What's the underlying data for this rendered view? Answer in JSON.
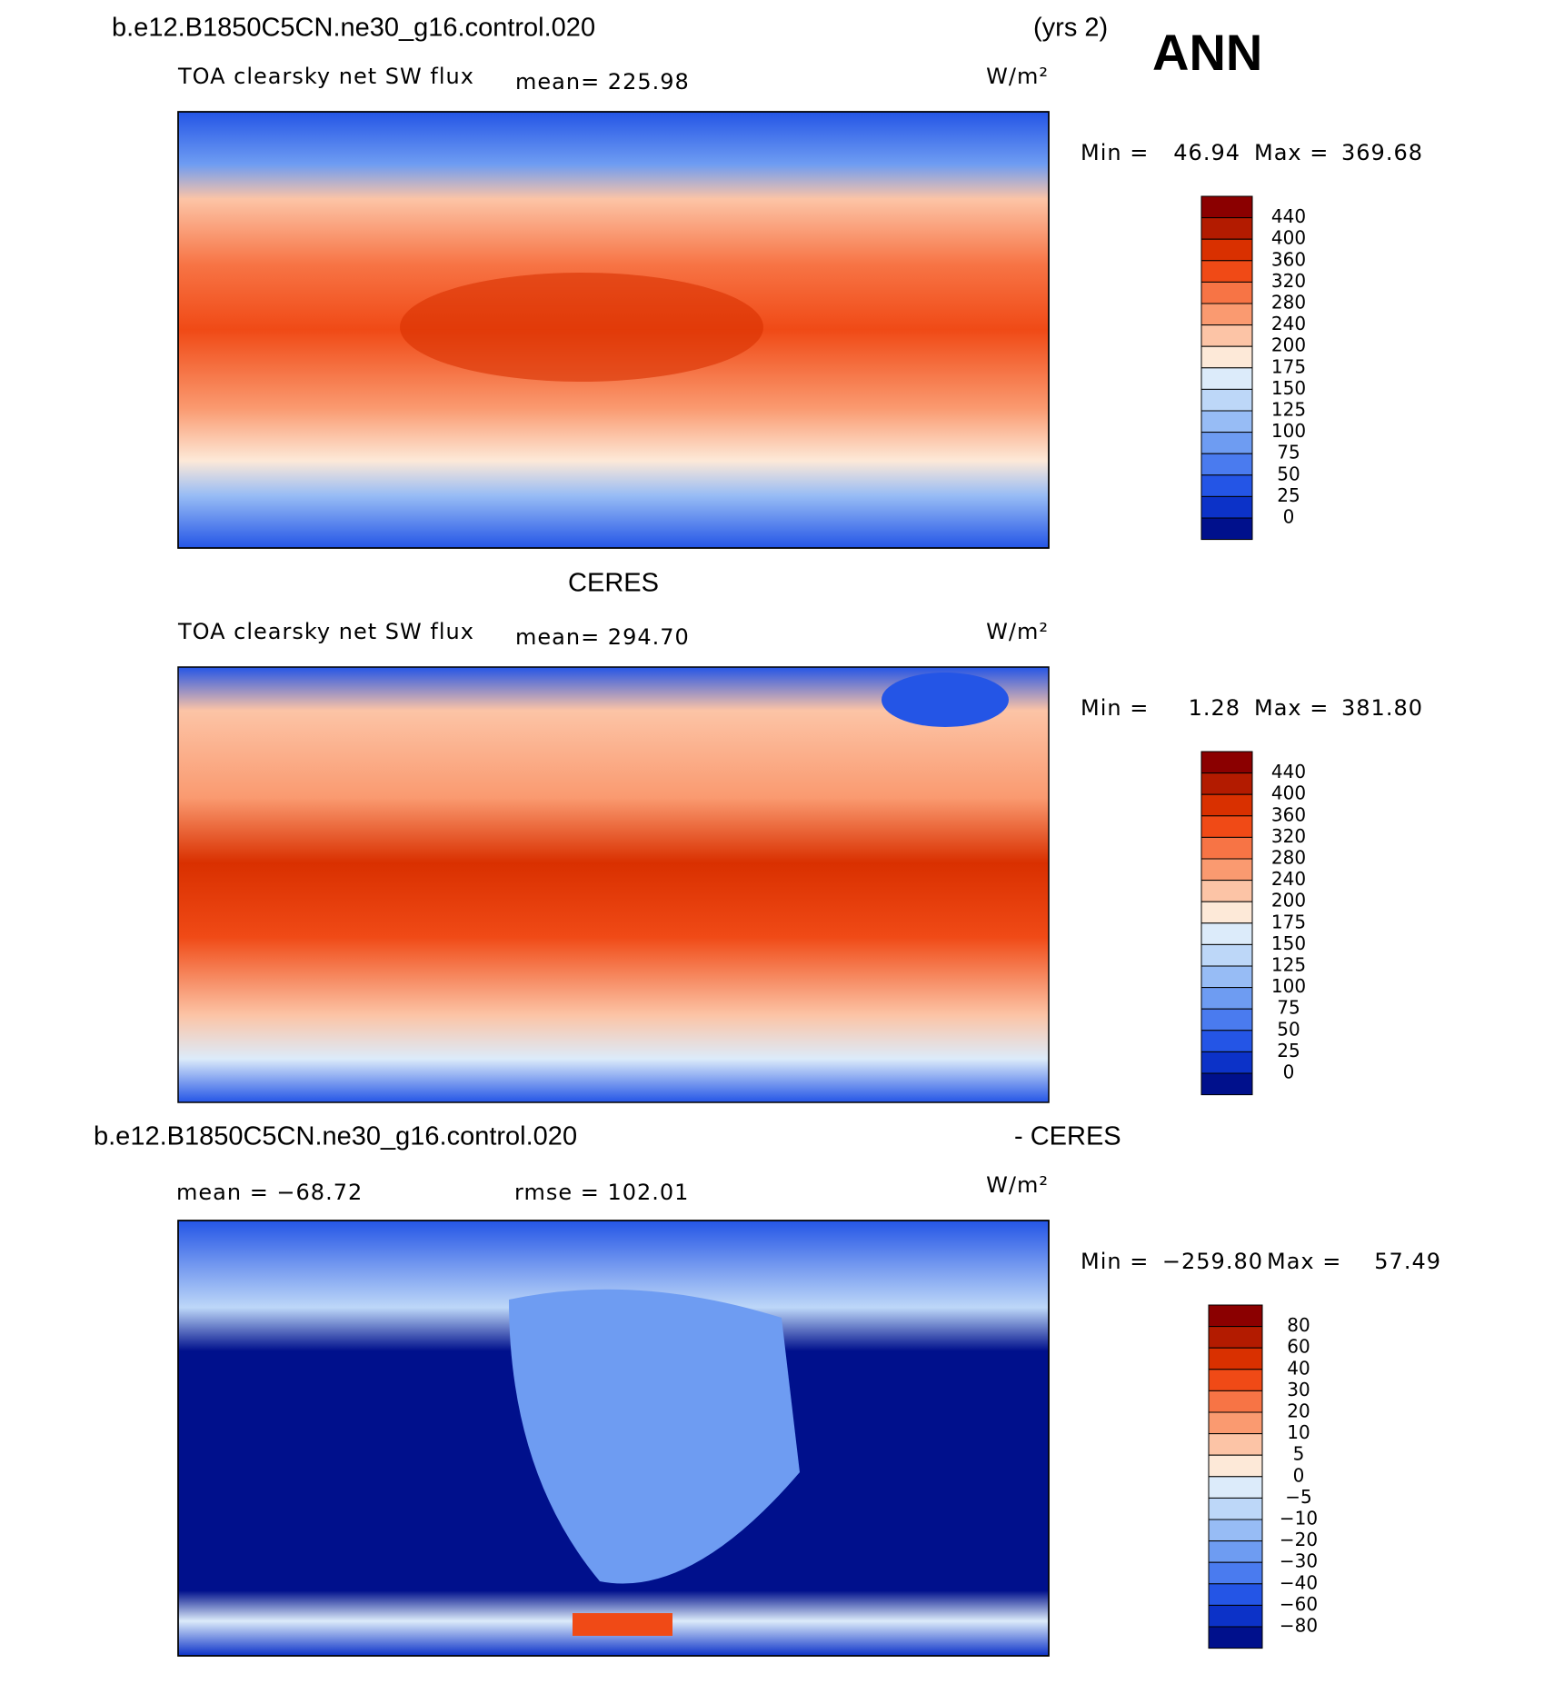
{
  "header": {
    "case": "b.e12.B1850C5CN.ne30_g16.control.020",
    "years": "(yrs 2)",
    "season": "ANN"
  },
  "panels": [
    {
      "heading": null,
      "variable": "TOA clearsky net SW flux",
      "mean": "mean= 225.98",
      "units": "W/m²",
      "min_label": "Min =",
      "min": "46.94",
      "max_label": "Max =",
      "max": "369.68",
      "colorbar": [
        "440",
        "400",
        "360",
        "320",
        "280",
        "240",
        "200",
        "175",
        "150",
        "125",
        "100",
        "75",
        "50",
        "25",
        "0"
      ]
    },
    {
      "heading": "CERES",
      "variable": "TOA clearsky net SW flux",
      "mean": "mean= 294.70",
      "units": "W/m²",
      "min_label": "Min =",
      "min": "1.28",
      "max_label": "Max =",
      "max": "381.80",
      "colorbar": [
        "440",
        "400",
        "360",
        "320",
        "280",
        "240",
        "200",
        "175",
        "150",
        "125",
        "100",
        "75",
        "50",
        "25",
        "0"
      ]
    },
    {
      "heading": "b.e12.B1850C5CN.ne30_g16.control.020",
      "heading_right": "- CERES",
      "mean": "mean = −68.72",
      "rmse": "rmse = 102.01",
      "units": "W/m²",
      "min_label": "Min =",
      "min": "−259.80",
      "max_label": "Max =",
      "max": "57.49",
      "colorbar": [
        "80",
        "60",
        "40",
        "30",
        "20",
        "10",
        "5",
        "0",
        "−5",
        "−10",
        "−20",
        "−30",
        "−40",
        "−60",
        "−80"
      ]
    }
  ],
  "palette": [
    "#8b0000",
    "#b31b00",
    "#d93000",
    "#f04a16",
    "#f77445",
    "#fa9a70",
    "#fcc4a6",
    "#fde9d8",
    "#dcebfa",
    "#bdd7f8",
    "#97bcf5",
    "#6e9cf2",
    "#4a7bef",
    "#2455e6",
    "#0c32c8",
    "#00108c"
  ]
}
